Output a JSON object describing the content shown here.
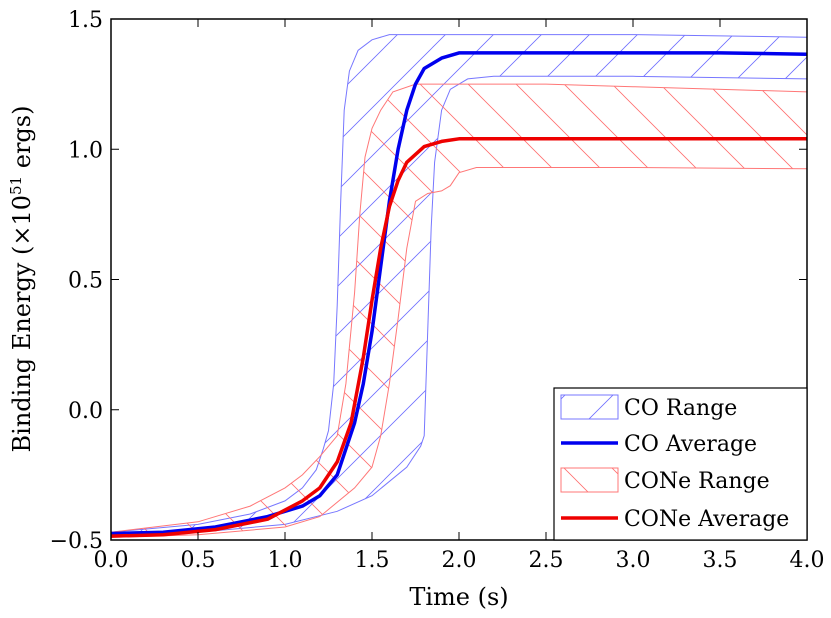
{
  "chart_data": {
    "type": "line",
    "xlabel": "Time (s)",
    "ylabel_main": "Binding Energy (",
    "ylabel_times": "×10",
    "ylabel_exp": "51",
    "ylabel_unit": " ergs)",
    "xlim": [
      0.0,
      4.0
    ],
    "ylim": [
      -0.5,
      1.5
    ],
    "x_ticks": [
      "0.0",
      "0.5",
      "1.0",
      "1.5",
      "2.0",
      "2.5",
      "3.0",
      "3.5",
      "4.0"
    ],
    "y_ticks": [
      "−0.5",
      "0.0",
      "0.5",
      "1.0",
      "1.5"
    ],
    "legend_position": "lower-right",
    "series": [
      {
        "name": "CO Range",
        "kind": "range",
        "color": "#7777ff",
        "hatch": "forward",
        "upper": [
          [
            0.0,
            -0.47
          ],
          [
            0.5,
            -0.44
          ],
          [
            0.8,
            -0.4
          ],
          [
            1.0,
            -0.35
          ],
          [
            1.1,
            -0.3
          ],
          [
            1.18,
            -0.23
          ],
          [
            1.22,
            -0.15
          ],
          [
            1.25,
            -0.08
          ],
          [
            1.28,
            0.1
          ],
          [
            1.3,
            0.4
          ],
          [
            1.32,
            0.8
          ],
          [
            1.34,
            1.15
          ],
          [
            1.37,
            1.3
          ],
          [
            1.42,
            1.38
          ],
          [
            1.5,
            1.42
          ],
          [
            1.6,
            1.44
          ],
          [
            2.0,
            1.44
          ],
          [
            3.0,
            1.44
          ],
          [
            4.0,
            1.43
          ]
        ],
        "lower": [
          [
            0.0,
            -0.48
          ],
          [
            0.5,
            -0.47
          ],
          [
            1.0,
            -0.44
          ],
          [
            1.3,
            -0.39
          ],
          [
            1.5,
            -0.33
          ],
          [
            1.7,
            -0.22
          ],
          [
            1.78,
            -0.14
          ],
          [
            1.8,
            -0.1
          ],
          [
            1.82,
            0.3
          ],
          [
            1.84,
            0.7
          ],
          [
            1.86,
            0.95
          ],
          [
            1.9,
            1.15
          ],
          [
            1.95,
            1.23
          ],
          [
            2.05,
            1.27
          ],
          [
            2.2,
            1.28
          ],
          [
            3.0,
            1.28
          ],
          [
            4.0,
            1.27
          ]
        ]
      },
      {
        "name": "CO Average",
        "kind": "line",
        "color": "#0000ee",
        "points": [
          [
            0.0,
            -0.475
          ],
          [
            0.3,
            -0.47
          ],
          [
            0.6,
            -0.45
          ],
          [
            0.9,
            -0.41
          ],
          [
            1.1,
            -0.37
          ],
          [
            1.2,
            -0.33
          ],
          [
            1.3,
            -0.25
          ],
          [
            1.4,
            -0.05
          ],
          [
            1.45,
            0.1
          ],
          [
            1.5,
            0.3
          ],
          [
            1.55,
            0.55
          ],
          [
            1.6,
            0.8
          ],
          [
            1.65,
            1.0
          ],
          [
            1.7,
            1.15
          ],
          [
            1.75,
            1.25
          ],
          [
            1.8,
            1.31
          ],
          [
            1.9,
            1.35
          ],
          [
            2.0,
            1.37
          ],
          [
            2.5,
            1.37
          ],
          [
            3.0,
            1.37
          ],
          [
            3.5,
            1.37
          ],
          [
            4.0,
            1.365
          ]
        ]
      },
      {
        "name": "CONe Range",
        "kind": "range",
        "color": "#ff7777",
        "hatch": "backward",
        "upper": [
          [
            0.0,
            -0.47
          ],
          [
            0.5,
            -0.43
          ],
          [
            0.8,
            -0.37
          ],
          [
            1.0,
            -0.3
          ],
          [
            1.1,
            -0.25
          ],
          [
            1.2,
            -0.18
          ],
          [
            1.3,
            -0.1
          ],
          [
            1.35,
            0.1
          ],
          [
            1.4,
            0.45
          ],
          [
            1.43,
            0.75
          ],
          [
            1.46,
            0.97
          ],
          [
            1.5,
            1.08
          ],
          [
            1.55,
            1.15
          ],
          [
            1.62,
            1.22
          ],
          [
            1.75,
            1.25
          ],
          [
            2.5,
            1.25
          ],
          [
            3.0,
            1.24
          ],
          [
            4.0,
            1.22
          ]
        ],
        "lower": [
          [
            0.0,
            -0.49
          ],
          [
            0.5,
            -0.48
          ],
          [
            1.0,
            -0.45
          ],
          [
            1.2,
            -0.41
          ],
          [
            1.4,
            -0.3
          ],
          [
            1.5,
            -0.22
          ],
          [
            1.55,
            -0.1
          ],
          [
            1.6,
            0.1
          ],
          [
            1.65,
            0.35
          ],
          [
            1.7,
            0.62
          ],
          [
            1.75,
            0.8
          ],
          [
            1.82,
            0.83
          ],
          [
            1.9,
            0.84
          ],
          [
            1.95,
            0.86
          ],
          [
            2.0,
            0.91
          ],
          [
            2.1,
            0.93
          ],
          [
            3.0,
            0.93
          ],
          [
            4.0,
            0.925
          ]
        ]
      },
      {
        "name": "CONe Average",
        "kind": "line",
        "color": "#ee0000",
        "points": [
          [
            0.0,
            -0.485
          ],
          [
            0.3,
            -0.48
          ],
          [
            0.6,
            -0.46
          ],
          [
            0.9,
            -0.42
          ],
          [
            1.1,
            -0.35
          ],
          [
            1.2,
            -0.3
          ],
          [
            1.3,
            -0.2
          ],
          [
            1.38,
            -0.05
          ],
          [
            1.45,
            0.2
          ],
          [
            1.5,
            0.42
          ],
          [
            1.55,
            0.62
          ],
          [
            1.6,
            0.78
          ],
          [
            1.65,
            0.88
          ],
          [
            1.7,
            0.95
          ],
          [
            1.8,
            1.01
          ],
          [
            1.9,
            1.03
          ],
          [
            2.0,
            1.04
          ],
          [
            3.0,
            1.04
          ],
          [
            4.0,
            1.04
          ]
        ]
      }
    ]
  }
}
